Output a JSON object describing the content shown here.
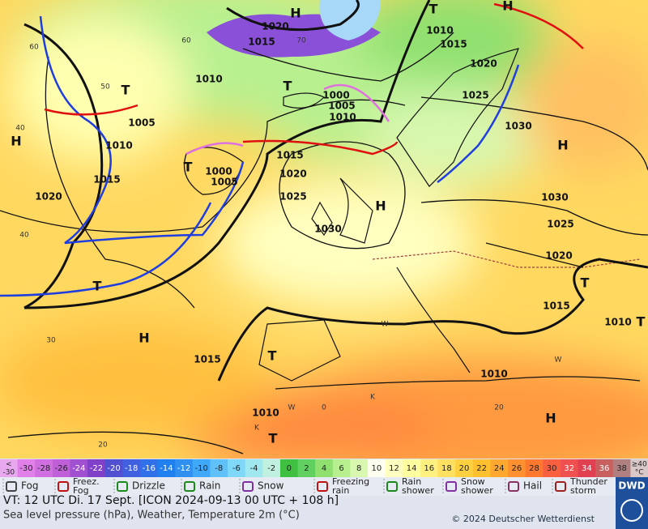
{
  "map": {
    "labels": [
      "H",
      "1020",
      "1015",
      "70",
      "60",
      "60",
      "50",
      "T",
      "1010",
      "T",
      "1000",
      "1005",
      "1010",
      "1005",
      "1010",
      "H",
      "40",
      "1015",
      "1020",
      "1000",
      "1005",
      "T",
      "1015",
      "1020",
      "1025",
      "H",
      "1030",
      "40",
      "1010",
      "1015",
      "1020",
      "1025",
      "1030",
      "H",
      "1030",
      "1025",
      "1020",
      "T",
      "1015",
      "1010",
      "T",
      "T",
      "H",
      "30",
      "1015",
      "T",
      "1010",
      "1010",
      "T",
      "H",
      "20",
      "0",
      "20",
      "W",
      "W",
      "W",
      "K",
      "K",
      "T",
      "H"
    ]
  },
  "color_scale": {
    "low": {
      "top": "<",
      "bottom": "-30"
    },
    "values": [
      -30,
      -28,
      -26,
      -24,
      -22,
      -20,
      -18,
      -16,
      -14,
      -12,
      -10,
      -8,
      -6,
      -4,
      -2,
      0,
      2,
      4,
      6,
      8,
      10,
      12,
      14,
      16,
      18,
      20,
      22,
      24,
      26,
      28,
      30,
      32,
      34,
      36,
      38
    ],
    "high": {
      "top": "≥40",
      "bottom": "°C"
    },
    "colors": [
      "#e8a8f0",
      "#e080e8",
      "#d070e0",
      "#c060d8",
      "#a050d0",
      "#8040c8",
      "#5050d0",
      "#4060e0",
      "#3070e8",
      "#2080f0",
      "#3090f0",
      "#40a8f8",
      "#60c0f8",
      "#80d8f8",
      "#a0e8f0",
      "#c0f0e0",
      "#40c040",
      "#60d060",
      "#90e070",
      "#b8f090",
      "#d8f8b0",
      "#fffff0",
      "#ffffc0",
      "#ffffa0",
      "#fff080",
      "#ffe060",
      "#ffd040",
      "#ffc030",
      "#ffa830",
      "#ff9030",
      "#ff7830",
      "#f86040",
      "#f05050",
      "#e04050",
      "#c86060",
      "#b08080",
      "#d8c8c8"
    ]
  },
  "weather_legend": [
    "Fog",
    "Freez. Fog",
    "Drizzle",
    "Rain",
    "Snow",
    "Freezing rain",
    "Rain shower",
    "Snow shower",
    "Hail",
    "Thunder storm"
  ],
  "footer": {
    "valid_time": "VT: 12 UTC Di.  17 Sept. [ICON 2024-09-13  00 UTC + 108 h]",
    "description": "Sea level pressure (hPa), Weather, Temperature 2m (°C)",
    "copyright": "© 2024 Deutscher Wetterdienst",
    "logo": "DWD"
  }
}
